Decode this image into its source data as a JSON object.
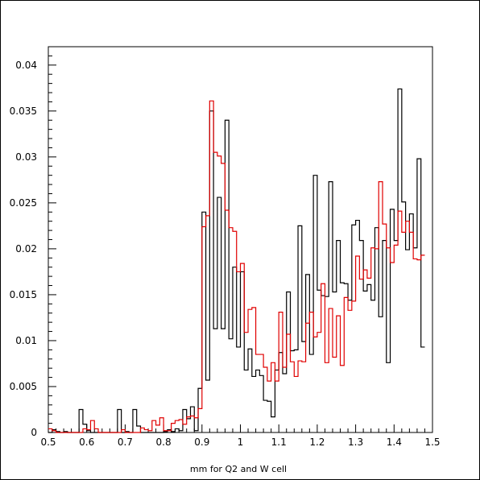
{
  "chart_data": {
    "type": "line",
    "title": "",
    "xlabel": "mm for Q2 and W cell",
    "ylabel": "",
    "xlim": [
      0.5,
      1.5
    ],
    "ylim": [
      0,
      0.042
    ],
    "x_ticks": [
      "0.5",
      "0.6",
      "0.7",
      "0.8",
      "0.9",
      "1",
      "1.1",
      "1.2",
      "1.3",
      "1.4",
      "1.5"
    ],
    "y_ticks": [
      "0",
      "0.005",
      "0.01",
      "0.015",
      "0.02",
      "0.025",
      "0.03",
      "0.035",
      "0.04"
    ],
    "bin_width": 0.01,
    "grid": false,
    "series": [
      {
        "color": "#000000",
        "values": [
          0,
          0.0003,
          0.0001,
          0,
          0.0001,
          0,
          0,
          0,
          0.0025,
          0.0009,
          0.0002,
          0,
          0,
          0,
          0,
          0,
          0,
          0,
          0.0025,
          0,
          0.0001,
          0,
          0.0025,
          0.0007,
          0,
          0,
          0,
          0,
          0,
          0,
          0.0001,
          0.0003,
          0.0001,
          0.0004,
          0.0002,
          0.0025,
          0.0015,
          0.0028,
          0.0002,
          0.0048,
          0.024,
          0.0057,
          0.035,
          0.0113,
          0.0256,
          0.0113,
          0.034,
          0.0102,
          0.018,
          0.0093,
          0.0175,
          0.0068,
          0.0091,
          0.0061,
          0.0068,
          0.0062,
          0.0035,
          0.0034,
          0.0017,
          0.0068,
          0.0087,
          0.0064,
          0.0153,
          0.0089,
          0.009,
          0.0225,
          0.0099,
          0.0172,
          0.0085,
          0.028,
          0.0155,
          0.0149,
          0.0148,
          0.0273,
          0.0153,
          0.0209,
          0.0163,
          0.0162,
          0.0144,
          0.0226,
          0.0231,
          0.0209,
          0.0154,
          0.0161,
          0.0144,
          0.0223,
          0.0126,
          0.0209,
          0.0076,
          0.0243,
          0.0209,
          0.0374,
          0.0251,
          0.0199,
          0.0238,
          0.0201,
          0.0298,
          0.0093
        ]
      },
      {
        "color": "#e00000",
        "values": [
          0.0004,
          0.0002,
          0,
          0,
          0,
          0,
          0,
          0,
          0,
          0.0004,
          0.0003,
          0.0013,
          0.0004,
          0,
          0,
          0,
          0,
          0,
          0,
          0.0003,
          0,
          0,
          0,
          0,
          0.0005,
          0.0003,
          0.0002,
          0.0013,
          0.0008,
          0.0016,
          0.0002,
          0.0002,
          0.001,
          0.0013,
          0.0014,
          0.0009,
          0.0017,
          0.0018,
          0.0016,
          0.0026,
          0.0224,
          0.0236,
          0.0361,
          0.0305,
          0.0301,
          0.0293,
          0.0242,
          0.0223,
          0.0219,
          0.0175,
          0.0184,
          0.0109,
          0.0134,
          0.0136,
          0.0085,
          0.0085,
          0.0071,
          0.0056,
          0.0076,
          0.0056,
          0.0131,
          0.0071,
          0.0107,
          0.0077,
          0.0061,
          0.0078,
          0.0077,
          0.0119,
          0.0131,
          0.0104,
          0.0109,
          0.0162,
          0.0076,
          0.0135,
          0.0082,
          0.0127,
          0.0073,
          0.0147,
          0.0133,
          0.0143,
          0.0192,
          0.0167,
          0.0177,
          0.0168,
          0.0201,
          0.02,
          0.0273,
          0.0227,
          0.0201,
          0.0185,
          0.0204,
          0.0241,
          0.0218,
          0.023,
          0.0218,
          0.0189,
          0.0188,
          0.0193
        ]
      }
    ]
  }
}
